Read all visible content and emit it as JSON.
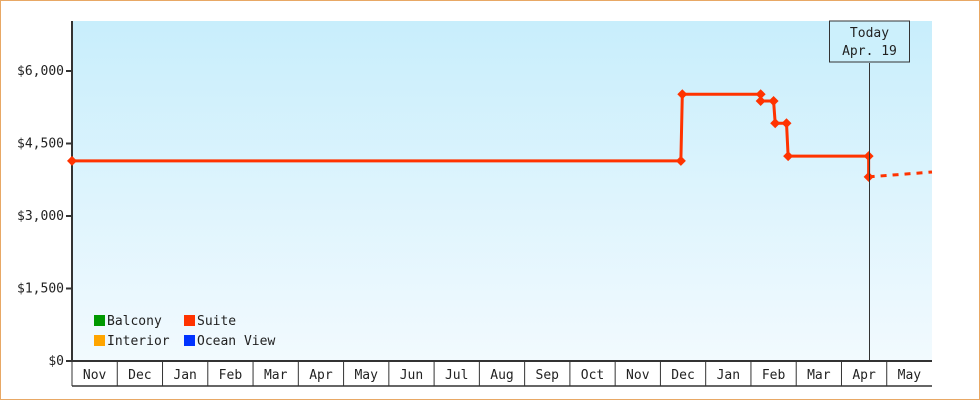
{
  "chart_data": {
    "type": "line",
    "title": "",
    "xlabel": "",
    "ylabel": "",
    "ylim": [
      0,
      7000
    ],
    "y_ticks": [
      "$0",
      "$1,500",
      "$3,000",
      "$4,500",
      "$6,000"
    ],
    "y_tick_values": [
      0,
      1500,
      3000,
      4500,
      6000
    ],
    "x_range": [
      "2017-11-01",
      "2019-05-31"
    ],
    "x_ticks": [
      "Nov",
      "Dec",
      "Jan",
      "Feb",
      "Mar",
      "Apr",
      "May",
      "Jun",
      "Jul",
      "Aug",
      "Sep",
      "Oct",
      "Nov",
      "Dec",
      "Jan",
      "Feb",
      "Mar",
      "Apr",
      "May"
    ],
    "grid": false,
    "legend_position": "bottom-left",
    "legend": [
      {
        "name": "Balcony",
        "color": "#009900"
      },
      {
        "name": "Suite",
        "color": "#ff3300"
      },
      {
        "name": "Interior",
        "color": "#ffa500"
      },
      {
        "name": "Ocean View",
        "color": "#0033ff"
      }
    ],
    "series": [
      {
        "name": "Suite",
        "color": "#ff3300",
        "step": true,
        "points": [
          {
            "date": "2017-11-01",
            "value": 4140
          },
          {
            "date": "2018-12-15",
            "value": 4140
          },
          {
            "date": "2018-12-16",
            "value": 5520
          },
          {
            "date": "2019-02-07",
            "value": 5520
          },
          {
            "date": "2019-02-07",
            "value": 5380
          },
          {
            "date": "2019-02-15",
            "value": 5380
          },
          {
            "date": "2019-02-16",
            "value": 4920
          },
          {
            "date": "2019-02-23",
            "value": 4920
          },
          {
            "date": "2019-02-24",
            "value": 4240
          },
          {
            "date": "2019-04-19",
            "value": 4240
          },
          {
            "date": "2019-04-19",
            "value": 3810
          }
        ],
        "projection": [
          {
            "date": "2019-04-19",
            "value": 3810
          },
          {
            "date": "2019-05-31",
            "value": 3910
          }
        ]
      }
    ],
    "annotation": {
      "line1": "Today",
      "line2": "Apr. 19",
      "date": "2019-04-19"
    }
  }
}
